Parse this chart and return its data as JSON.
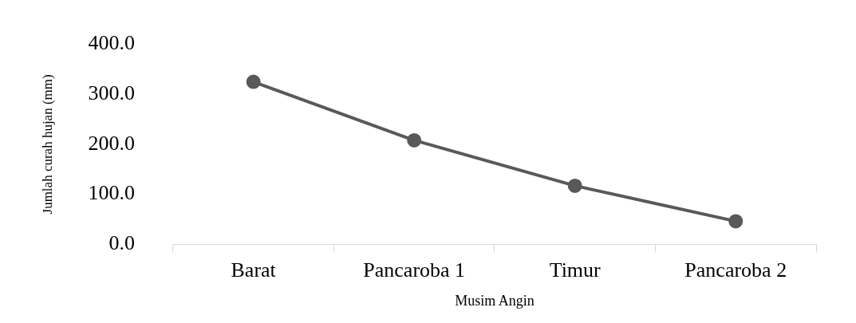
{
  "chart_data": {
    "type": "line",
    "xlabel": "Musim Angin",
    "ylabel": "Jumlah curah hujan (mm)",
    "categories": [
      "Barat",
      "Pancaroba 1",
      "Timur",
      "Pancaroba 2"
    ],
    "series": [
      {
        "color": "#595959",
        "values": [
          325,
          208,
          117,
          46
        ]
      }
    ],
    "ylim": [
      0,
      400
    ],
    "yticks": [
      {
        "value": 0,
        "label": "0.0"
      },
      {
        "value": 100,
        "label": "100.0"
      },
      {
        "value": 200,
        "label": "200.0"
      },
      {
        "value": 300,
        "label": "300.0"
      },
      {
        "value": 400,
        "label": "400.0"
      }
    ],
    "grid": false,
    "legend": false,
    "marker": "circle",
    "line_style": "solid"
  }
}
